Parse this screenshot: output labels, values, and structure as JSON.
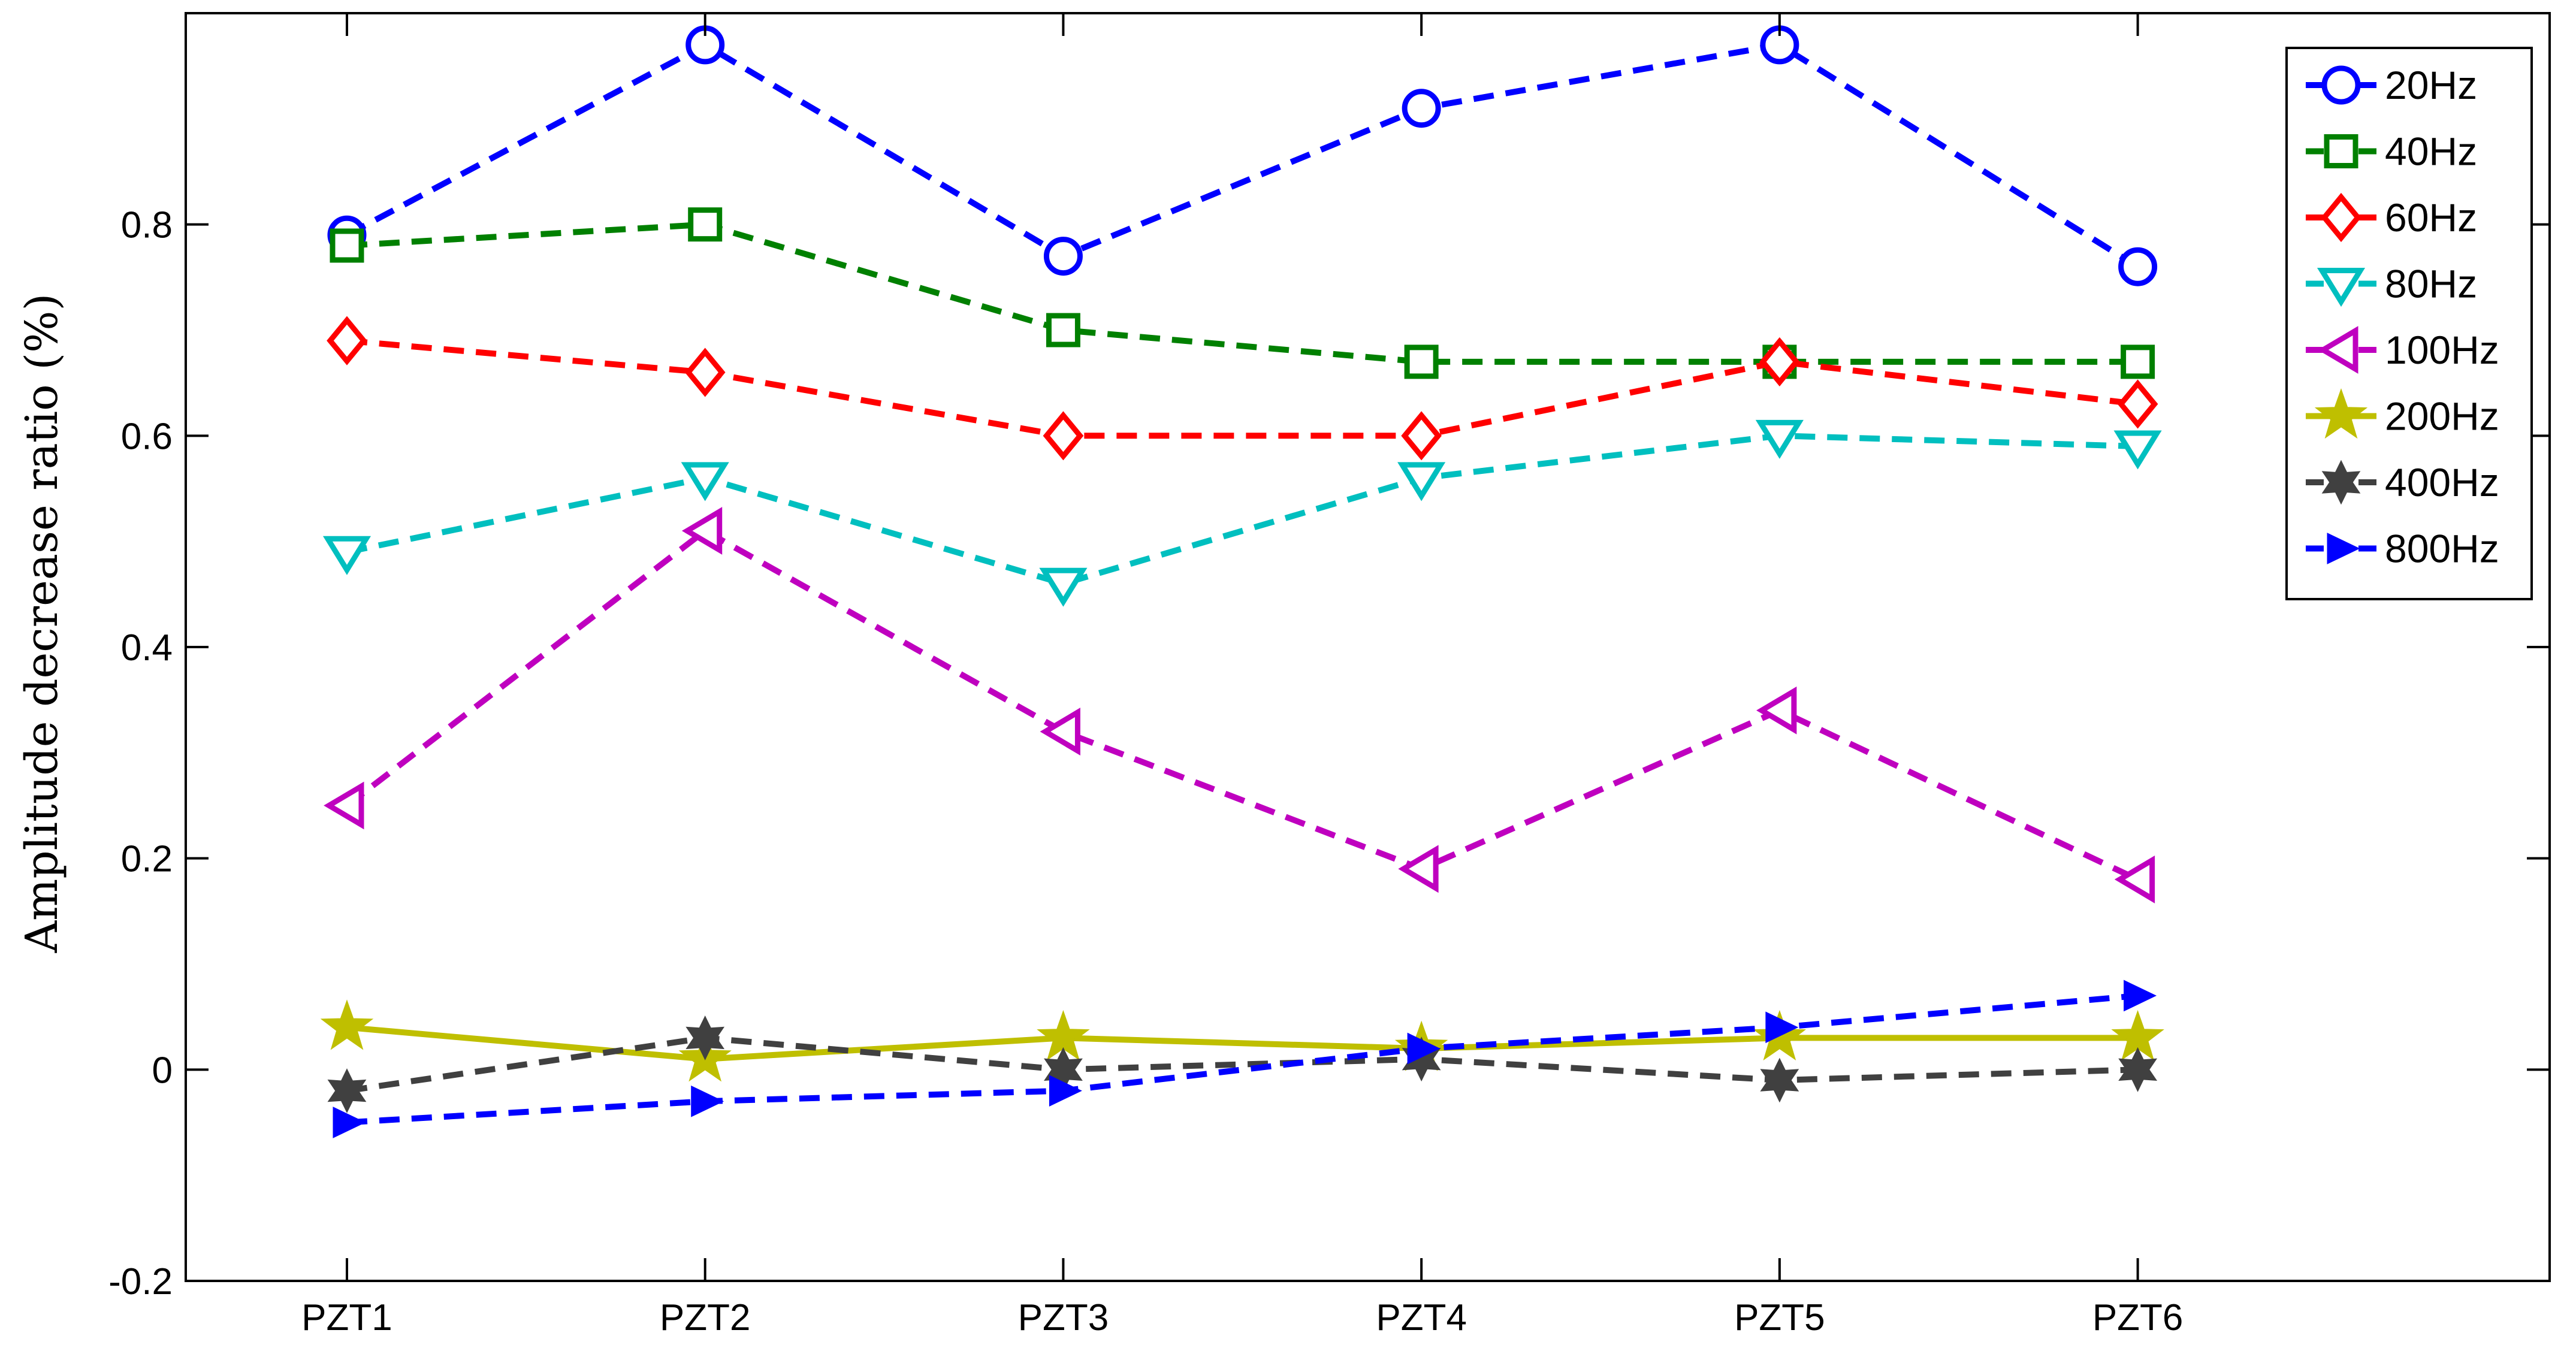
{
  "chart_data": {
    "type": "line",
    "title": "",
    "xlabel": "",
    "ylabel": "Amplitude decrease ratio (%)",
    "categories": [
      "PZT1",
      "PZT2",
      "PZT3",
      "PZT4",
      "PZT5",
      "PZT6"
    ],
    "xlim": [
      0.55,
      7.15
    ],
    "ylim": [
      -0.2,
      1.0
    ],
    "yticks": [
      -0.2,
      0,
      0.2,
      0.4,
      0.6,
      0.8
    ],
    "ytick_labels": [
      "-0.2",
      "0",
      "0.2",
      "0.4",
      "0.6",
      "0.8"
    ],
    "grid": false,
    "legend_position": "top-right",
    "series": [
      {
        "name": "20Hz",
        "color": "#0000ff",
        "marker": "circle",
        "line": "dashed",
        "values": [
          0.79,
          0.97,
          0.77,
          0.91,
          0.97,
          0.76
        ]
      },
      {
        "name": "40Hz",
        "color": "#008000",
        "marker": "square",
        "line": "dashed",
        "values": [
          0.78,
          0.8,
          0.7,
          0.67,
          0.67,
          0.67
        ]
      },
      {
        "name": "60Hz",
        "color": "#ff0000",
        "marker": "diamond",
        "line": "dashed",
        "values": [
          0.69,
          0.66,
          0.6,
          0.6,
          0.67,
          0.63
        ]
      },
      {
        "name": "80Hz",
        "color": "#00bfbf",
        "marker": "triangle-down",
        "line": "dashed",
        "values": [
          0.49,
          0.56,
          0.46,
          0.56,
          0.6,
          0.59
        ]
      },
      {
        "name": "100Hz",
        "color": "#bf00bf",
        "marker": "triangle-left",
        "line": "dashed",
        "values": [
          0.25,
          0.51,
          0.32,
          0.19,
          0.34,
          0.18
        ]
      },
      {
        "name": "200Hz",
        "color": "#bfbf00",
        "marker": "star",
        "line": "solid",
        "values": [
          0.04,
          0.01,
          0.03,
          0.02,
          0.03,
          0.03
        ]
      },
      {
        "name": "400Hz",
        "color": "#404040",
        "marker": "hexagram",
        "line": "dashed",
        "values": [
          -0.02,
          0.03,
          0.0,
          0.01,
          -0.01,
          0.0
        ]
      },
      {
        "name": "800Hz",
        "color": "#0000ff",
        "marker": "triangle-right-filled",
        "line": "dashed",
        "values": [
          -0.05,
          -0.03,
          -0.02,
          0.02,
          0.04,
          0.07
        ]
      }
    ]
  }
}
